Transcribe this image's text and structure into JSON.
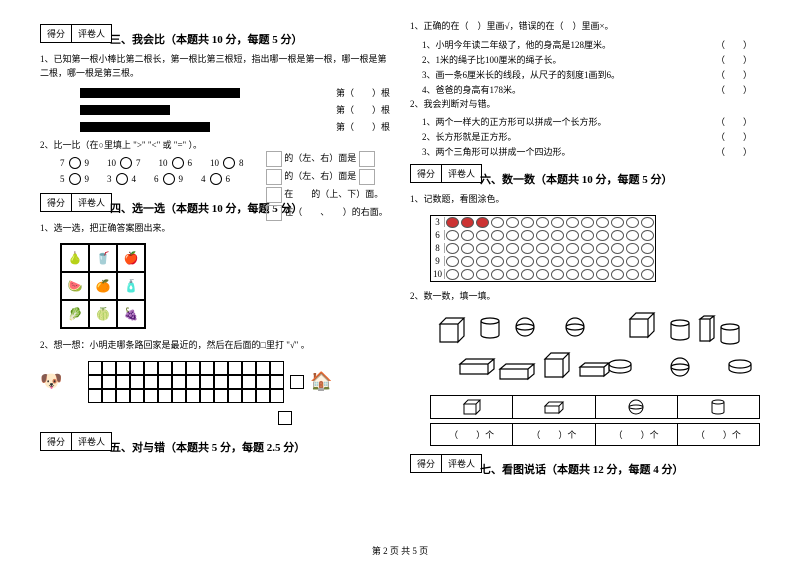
{
  "pageFooter": "第 2 页 共 5 页",
  "scoreLabels": {
    "score": "得分",
    "grader": "评卷人"
  },
  "left": {
    "s3": {
      "title": "三、我会比（本题共 10 分，每题 5 分）",
      "q1": "1、已知第一根小棒比第二根长，第一根比第三根短，指出哪一根是第一根，哪一根是第二根，哪一根是第三根。",
      "barLabels": [
        "第（　　）根",
        "第（　　）根",
        "第（　　）根"
      ],
      "barWidths": [
        160,
        90,
        130
      ],
      "q2": "2、比一比（在○里填上 \">\" \"<\" 或 \"=\" ）。",
      "compareRow1": [
        [
          "7",
          "9"
        ],
        [
          "10",
          "7"
        ],
        [
          "10",
          "6"
        ],
        [
          "10",
          "8"
        ]
      ],
      "compareRow2": [
        [
          "5",
          "9"
        ],
        [
          "3",
          "4"
        ],
        [
          "6",
          "9"
        ],
        [
          "4",
          "6"
        ]
      ]
    },
    "s4": {
      "title": "四、选一选（本题共 10 分，每题 5 分）",
      "q1": "1、选一选，把正确答案圈出来。",
      "lines": [
        "的（左、右）面是",
        "的（左、右）面是",
        "在　　的（上、下）面。",
        "在（　　、　　）的右面。"
      ],
      "q2": "2、想一想：小明走哪条路回家是最近的，然后在后面的□里打 \"√\" 。"
    },
    "s5": {
      "title": "五、对与错（本题共 5 分，每题 2.5 分）"
    }
  },
  "right": {
    "tf1": {
      "intro": "1、正确的在（　）里画√，错误的在（　）里画×。",
      "items": [
        "1、小明今年读二年级了，他的身高是128厘米。",
        "2、1米的绳子比100厘米的绳子长。",
        "3、画一条6厘米长的线段，从尺子的刻度1画到6。",
        "4、爸爸的身高有178米。"
      ]
    },
    "tf2": {
      "intro": "2、我会判断对与错。",
      "items": [
        "1、两个一样大的正方形可以拼成一个长方形。",
        "2、长方形就是正方形。",
        "3、两个三角形可以拼成一个四边形。"
      ]
    },
    "s6": {
      "title": "六、数一数（本题共 10 分，每题 5 分）",
      "q1": "1、记数题，看图涂色。",
      "beadNums": [
        "3",
        "6",
        "8",
        "9",
        "10"
      ],
      "beadFilled": [
        3,
        0,
        0,
        0,
        0
      ],
      "beadCols": 14,
      "q2": "2、数一数，填一填。",
      "answerLabels": [
        "（　　）个",
        "（　　）个",
        "（　　）个",
        "（　　）个"
      ]
    },
    "s7": {
      "title": "七、看图说话（本题共 12 分，每题 4 分）"
    }
  }
}
